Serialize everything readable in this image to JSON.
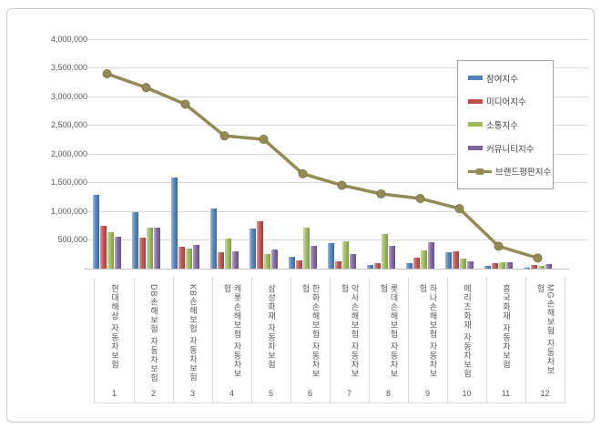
{
  "window": {
    "background": "#ffffff",
    "card_border_color": "#cbcbcb"
  },
  "chart_data": {
    "type": "bar",
    "subtype": "grouped vertical bars with line overlay (combo chart)",
    "title": "",
    "xlabel": "",
    "ylabel": "",
    "categories": [
      "현대해상 자동차보험",
      "DB손해보험 자동차보험",
      "KB손해보험 자동차보험",
      "캐롯손해보험 자동차보험",
      "삼성화재 자동차보험",
      "한화손해보험 자동차보험",
      "악사손해보험 자동차보험",
      "롯데손해보험 자동차보험",
      "하나손해보험 자동차보험",
      "메리츠화재 자동차보험",
      "흥국화재 자동차보험",
      "MG손해보험 자동차보험"
    ],
    "category_numbers": [
      "1",
      "2",
      "3",
      "4",
      "5",
      "6",
      "7",
      "8",
      "9",
      "10",
      "11",
      "12"
    ],
    "y_axis": {
      "min": 0,
      "max": 4000000,
      "tick_interval": 500000,
      "tick_labels_top_to_bottom": [
        "4,000,000",
        "3,500,000",
        "3,000,000",
        "2,500,000",
        "2,000,000",
        "1,500,000",
        "1,000,000",
        "500,000",
        "-"
      ]
    },
    "grid": true,
    "legend": {
      "position": "right-inside",
      "bordered": true
    },
    "series": [
      {
        "name": "참여지수",
        "type": "bar",
        "color": "#4f81bd",
        "values": [
          1290000,
          980000,
          1580000,
          1050000,
          690000,
          200000,
          440000,
          70000,
          90000,
          290000,
          40000,
          20000
        ]
      },
      {
        "name": "미디어지수",
        "type": "bar",
        "color": "#c0504d",
        "values": [
          745000,
          545000,
          380000,
          285000,
          825000,
          145000,
          130000,
          100000,
          195000,
          300000,
          90000,
          65000
        ]
      },
      {
        "name": "소통지수",
        "type": "bar",
        "color": "#9bbb59",
        "values": [
          640000,
          715000,
          355000,
          530000,
          250000,
          705000,
          475000,
          600000,
          310000,
          170000,
          115000,
          50000
        ]
      },
      {
        "name": "커뮤니티지수",
        "type": "bar",
        "color": "#8064a2",
        "values": [
          560000,
          720000,
          410000,
          300000,
          335000,
          390000,
          250000,
          395000,
          460000,
          120000,
          110000,
          85000
        ]
      },
      {
        "name": "브랜드평판지수",
        "type": "line",
        "color": "#948a54",
        "marker": "circle",
        "values": [
          3390000,
          3150000,
          2860000,
          2310000,
          2250000,
          1650000,
          1450000,
          1300000,
          1220000,
          1045000,
          390000,
          185000
        ]
      }
    ]
  }
}
